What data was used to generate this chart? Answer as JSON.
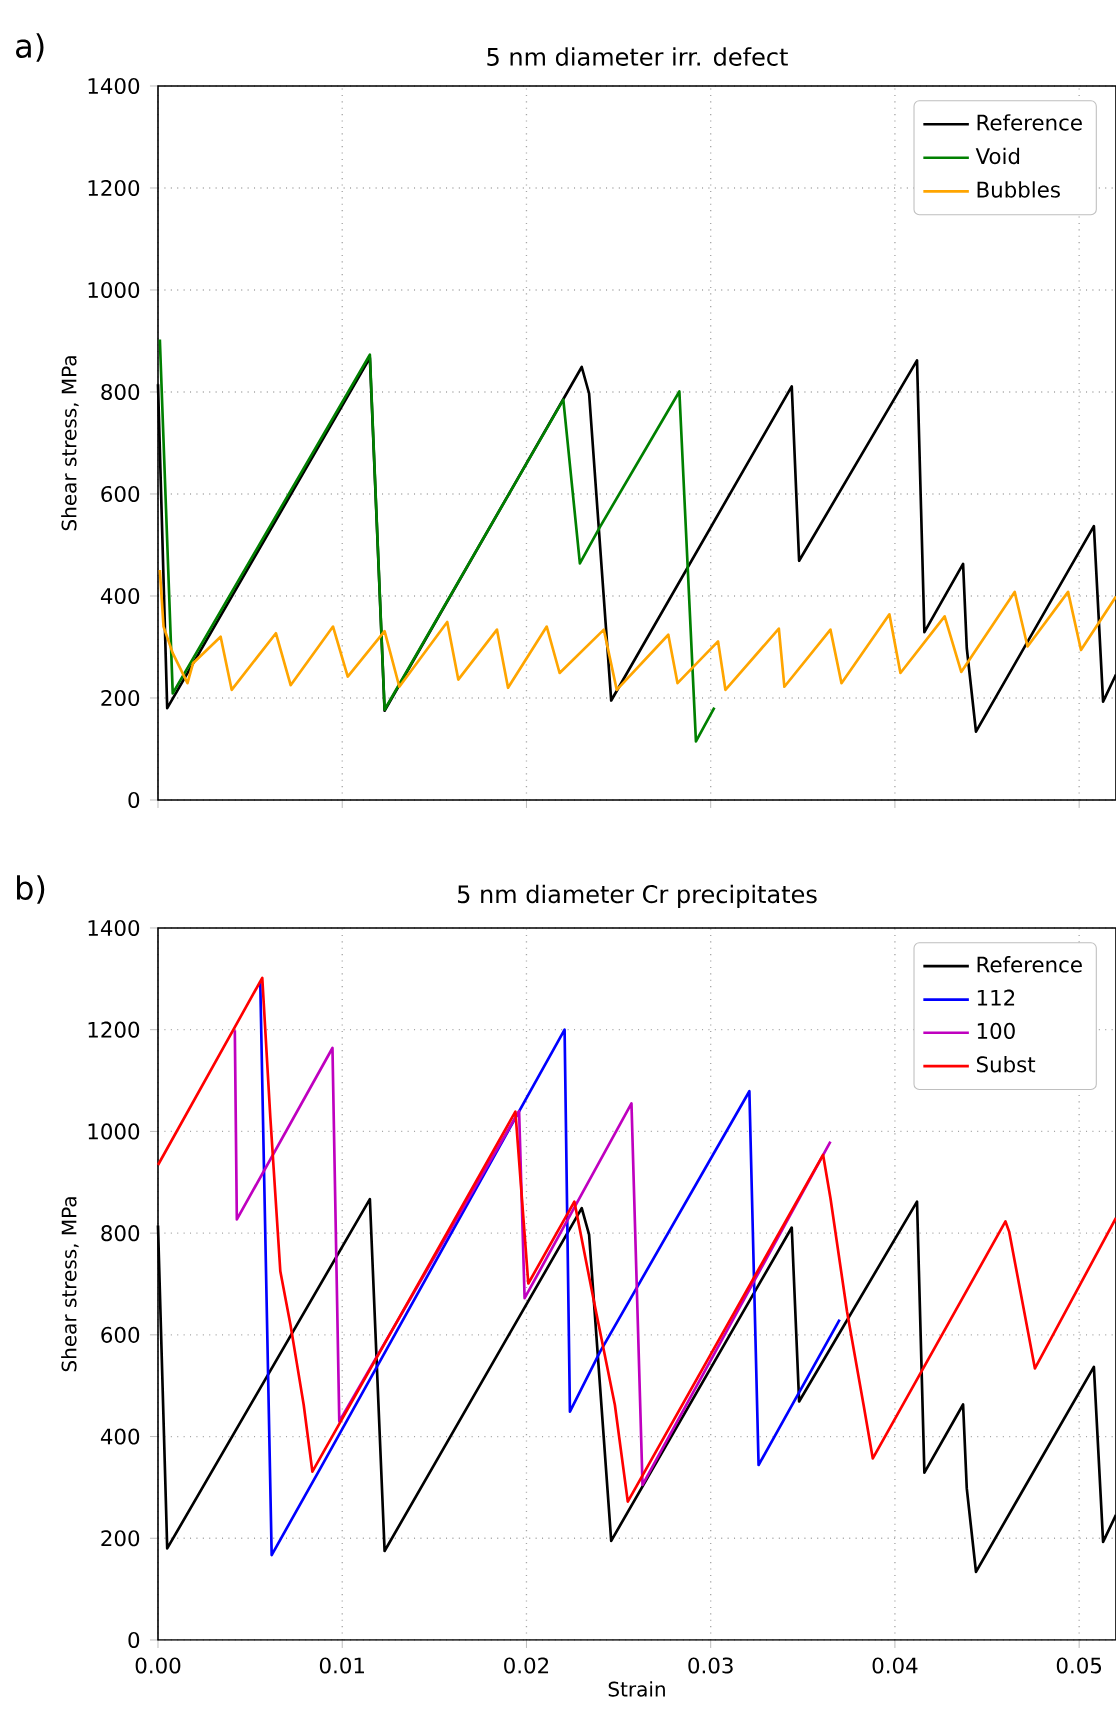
{
  "chart_data": [
    {
      "type": "line",
      "title": "5 nm diameter irr. defect",
      "ylabel": "Shear stress, MPa",
      "annotations": [
        "a)"
      ],
      "xlim": [
        0,
        0.052
      ],
      "ylim": [
        0,
        1400
      ],
      "xticks": [
        0,
        0.01,
        0.02,
        0.03,
        0.04,
        0.05
      ],
      "yticks": [
        0,
        200,
        400,
        600,
        800,
        1000,
        1200,
        1400
      ],
      "tick_labels": "y",
      "grid": true,
      "legend": "top right",
      "series": [
        {
          "name": "Reference",
          "color": "#000000",
          "x": [
            0,
            0.0005,
            0.0115,
            0.0123,
            0.023,
            0.0234,
            0.0246,
            0.0344,
            0.0348,
            0.0412,
            0.0416,
            0.0437,
            0.0439,
            0.0444,
            0.0508,
            0.0513,
            0.052
          ],
          "values": [
            815,
            180,
            867,
            175,
            849,
            797,
            195,
            811,
            469,
            862,
            329,
            463,
            298,
            134,
            537,
            193,
            246
          ]
        },
        {
          "name": "Void",
          "color": "#008000",
          "x": [
            0.0001,
            0.0008,
            0.0115,
            0.0123,
            0.022,
            0.0229,
            0.024,
            0.0283,
            0.0292,
            0.0302
          ],
          "values": [
            903,
            209,
            873,
            177,
            785,
            464,
            536,
            801,
            115,
            181
          ]
        },
        {
          "name": "Bubbles",
          "color": "#ffa500",
          "x": [
            0.0001,
            0.0003,
            0.0008,
            0.0016,
            0.0019,
            0.0034,
            0.004,
            0.0064,
            0.0072,
            0.0095,
            0.0103,
            0.0123,
            0.0131,
            0.0157,
            0.0163,
            0.0184,
            0.019,
            0.0211,
            0.0218,
            0.0242,
            0.0249,
            0.0277,
            0.0282,
            0.0304,
            0.0308,
            0.0337,
            0.034,
            0.0365,
            0.0371,
            0.0397,
            0.0403,
            0.0427,
            0.0436,
            0.0465,
            0.0472,
            0.0494,
            0.0501,
            0.052
          ],
          "values": [
            451,
            340,
            288,
            229,
            268,
            320,
            216,
            327,
            225,
            340,
            242,
            331,
            222,
            349,
            236,
            334,
            220,
            340,
            249,
            334,
            216,
            324,
            229,
            311,
            216,
            336,
            222,
            334,
            229,
            364,
            249,
            360,
            251,
            408,
            301,
            408,
            294,
            399
          ]
        }
      ]
    },
    {
      "type": "line",
      "title": "5 nm diameter Cr precipitates",
      "xlabel": "Strain",
      "ylabel": "Shear stress, MPa",
      "annotations": [
        "b)"
      ],
      "xlim": [
        0,
        0.052
      ],
      "ylim": [
        0,
        1400
      ],
      "xticks": [
        {
          "value": 0,
          "label": "0.00"
        },
        {
          "value": 0.01,
          "label": "0.01"
        },
        {
          "value": 0.02,
          "label": "0.02"
        },
        {
          "value": 0.03,
          "label": "0.03"
        },
        {
          "value": 0.04,
          "label": "0.04"
        },
        {
          "value": 0.05,
          "label": "0.05"
        }
      ],
      "yticks": [
        0,
        200,
        400,
        600,
        800,
        1000,
        1200,
        1400
      ],
      "grid": true,
      "legend": "top right",
      "series": [
        {
          "name": "Reference",
          "color": "#000000",
          "x": [
            0,
            0.0005,
            0.0115,
            0.0123,
            0.023,
            0.0234,
            0.0246,
            0.0344,
            0.0348,
            0.0412,
            0.0416,
            0.0437,
            0.0439,
            0.0444,
            0.0508,
            0.0513,
            0.052
          ],
          "values": [
            815,
            180,
            867,
            175,
            849,
            797,
            195,
            811,
            469,
            862,
            329,
            463,
            298,
            134,
            537,
            193,
            246
          ]
        },
        {
          "name": "112",
          "color": "#0000ff",
          "x": [
            0.00555,
            0.00617,
            0.00882,
            0.02207,
            0.02236,
            0.024,
            0.0321,
            0.0326,
            0.037
          ],
          "values": [
            1295,
            167,
            338,
            1200,
            449,
            567,
            1079,
            344,
            630
          ]
        },
        {
          "name": "100",
          "color": "#bf00bf",
          "x": [
            0.00417,
            0.00428,
            0.00947,
            0.00984,
            0.0196,
            0.0199,
            0.0257,
            0.0263,
            0.0365
          ],
          "values": [
            1199,
            827,
            1164,
            430,
            1040,
            672,
            1055,
            305,
            980
          ]
        },
        {
          "name": "Subst",
          "color": "#ff0000",
          "x": [
            0,
            0.00566,
            0.0061,
            0.00664,
            0.00719,
            0.00755,
            0.00791,
            0.00838,
            0.0194,
            0.0201,
            0.0226,
            0.0237,
            0.0248,
            0.0255,
            0.0361,
            0.0365,
            0.0374,
            0.0383,
            0.0388,
            0.046,
            0.0462,
            0.0476,
            0.052
          ],
          "values": [
            934,
            1302,
            1026,
            725,
            620,
            541,
            462,
            331,
            1039,
            701,
            862,
            659,
            462,
            272,
            954,
            869,
            646,
            462,
            357,
            823,
            803,
            534,
            830
          ]
        }
      ]
    }
  ]
}
